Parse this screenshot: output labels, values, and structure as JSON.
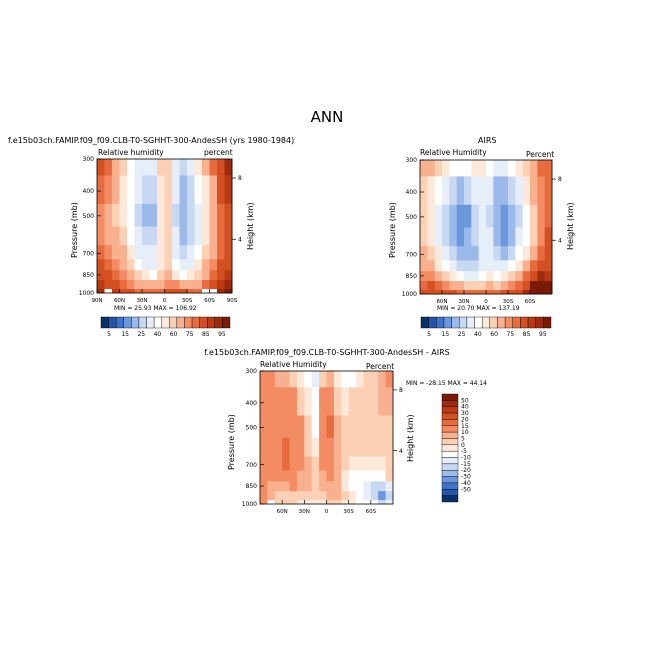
{
  "figure": {
    "title": "ANN",
    "diff_title": "f.e15b03ch.FAMIP.f09_f09.CLB-T0-SGHHT-300-AndesSH - AIRS"
  },
  "chart_data": [
    {
      "type": "heatmap",
      "panel": "model",
      "case_title": "f.e15b03ch.FAMIP.f09_f09.CLB-T0-SGHHT-300-AndesSH (yrs 1980-1984)",
      "field_label": "Relative humidity",
      "units": "percent",
      "ylabel": "Pressure (mb)",
      "ylabel_right": "Height (km)",
      "xlim": [
        90,
        -90
      ],
      "ylim": [
        1000,
        300
      ],
      "y_log": true,
      "xticks": [
        "90N",
        "60N",
        "30N",
        "0",
        "30S",
        "60S",
        "90S"
      ],
      "yticks": [
        "300",
        "400",
        "500",
        "700",
        "850",
        "1000"
      ],
      "right_ticks": [
        "8",
        "4"
      ],
      "stats": "MIN = 25.93  MAX = 106.92",
      "levels": [
        "5",
        "15",
        "25",
        "40",
        "60",
        "75",
        "85",
        "95"
      ],
      "colorbar_colors": [
        "#08306b",
        "#2454a6",
        "#3f73c9",
        "#6b97dc",
        "#9bb9ea",
        "#c7d8f3",
        "#e6eef9",
        "#ffffff",
        "#fde9d9",
        "#fbd0b5",
        "#f8b08e",
        "#f48c63",
        "#e86b3e",
        "#d44f22",
        "#bb3a14",
        "#9c2a0c",
        "#7a1a06"
      ],
      "x_centers": [
        85,
        75,
        65,
        55,
        45,
        35,
        25,
        15,
        5,
        -5,
        -15,
        -25,
        -35,
        -45,
        -55,
        -65,
        -75,
        -85
      ],
      "p_centers": [
        1000,
        925,
        850,
        775,
        700,
        600,
        500,
        400,
        300
      ],
      "values": [
        [
          100,
          95,
          95,
          90,
          85,
          80,
          80,
          80,
          82,
          85,
          85,
          85,
          80,
          80,
          85,
          90,
          100,
          105
        ],
        [
          95,
          90,
          85,
          80,
          75,
          70,
          65,
          65,
          70,
          75,
          72,
          68,
          65,
          70,
          78,
          85,
          95,
          100
        ],
        [
          90,
          85,
          80,
          75,
          70,
          60,
          55,
          50,
          60,
          65,
          58,
          50,
          55,
          62,
          70,
          80,
          90,
          95
        ],
        [
          85,
          80,
          75,
          70,
          60,
          50,
          45,
          42,
          55,
          60,
          50,
          42,
          45,
          55,
          65,
          75,
          85,
          90
        ],
        [
          80,
          75,
          70,
          65,
          55,
          45,
          40,
          40,
          55,
          60,
          45,
          38,
          40,
          50,
          60,
          70,
          80,
          88
        ],
        [
          75,
          70,
          65,
          60,
          50,
          40,
          35,
          35,
          55,
          60,
          40,
          32,
          35,
          45,
          55,
          65,
          78,
          85
        ],
        [
          75,
          70,
          62,
          55,
          48,
          38,
          32,
          32,
          55,
          60,
          38,
          28,
          35,
          45,
          55,
          65,
          80,
          88
        ],
        [
          80,
          75,
          65,
          55,
          48,
          40,
          35,
          35,
          58,
          60,
          40,
          32,
          38,
          48,
          58,
          70,
          85,
          92
        ],
        [
          90,
          80,
          70,
          60,
          50,
          45,
          40,
          42,
          60,
          62,
          45,
          38,
          45,
          55,
          65,
          78,
          90,
          100
        ]
      ],
      "masked_cells": [
        {
          "xi": 1,
          "pi": 0
        },
        {
          "xi": 14,
          "pi": 0
        },
        {
          "xi": 15,
          "pi": 0
        }
      ]
    },
    {
      "type": "heatmap",
      "panel": "obs",
      "case_title": "AIRS",
      "field_label": "Relative Humidity",
      "units": "Percent",
      "ylabel": "Pressure (mb)",
      "ylabel_right": "Height (km)",
      "xlim": [
        90,
        -90
      ],
      "ylim": [
        1000,
        300
      ],
      "y_log": true,
      "xticks": [
        "60N",
        "30N",
        "0",
        "30S",
        "60S"
      ],
      "yticks": [
        "300",
        "400",
        "500",
        "700",
        "850",
        "1000"
      ],
      "right_ticks": [
        "8",
        "4"
      ],
      "stats": "MIN = 20.70  MAX = 137.19",
      "levels": [
        "5",
        "15",
        "25",
        "40",
        "60",
        "75",
        "85",
        "95"
      ],
      "colorbar_colors": [
        "#08306b",
        "#2454a6",
        "#3f73c9",
        "#6b97dc",
        "#9bb9ea",
        "#c7d8f3",
        "#e6eef9",
        "#ffffff",
        "#fde9d9",
        "#fbd0b5",
        "#f8b08e",
        "#f48c63",
        "#e86b3e",
        "#d44f22",
        "#bb3a14",
        "#9c2a0c",
        "#7a1a06"
      ],
      "x_centers": [
        85,
        75,
        65,
        55,
        45,
        35,
        25,
        15,
        5,
        -5,
        -15,
        -25,
        -35,
        -45,
        -55,
        -65,
        -75,
        -85
      ],
      "p_centers": [
        1000,
        925,
        850,
        775,
        700,
        600,
        500,
        400,
        300
      ],
      "values": [
        [
          85,
          90,
          90,
          88,
          85,
          82,
          80,
          80,
          82,
          82,
          82,
          85,
          88,
          90,
          100,
          120,
          137,
          120
        ],
        [
          80,
          85,
          80,
          75,
          70,
          65,
          60,
          60,
          62,
          65,
          62,
          65,
          72,
          80,
          90,
          105,
          115,
          105
        ],
        [
          75,
          75,
          70,
          62,
          55,
          48,
          45,
          45,
          50,
          55,
          50,
          52,
          60,
          70,
          80,
          90,
          100,
          95
        ],
        [
          70,
          65,
          58,
          50,
          42,
          38,
          35,
          35,
          42,
          45,
          40,
          40,
          48,
          58,
          68,
          78,
          88,
          90
        ],
        [
          65,
          60,
          52,
          42,
          35,
          30,
          30,
          32,
          40,
          42,
          35,
          32,
          38,
          48,
          58,
          70,
          82,
          88
        ],
        [
          62,
          55,
          45,
          35,
          30,
          25,
          28,
          35,
          40,
          40,
          30,
          25,
          30,
          40,
          50,
          62,
          75,
          85
        ],
        [
          60,
          55,
          45,
          35,
          28,
          22,
          25,
          35,
          40,
          38,
          28,
          21,
          28,
          38,
          50,
          62,
          72,
          80
        ],
        [
          62,
          58,
          50,
          42,
          35,
          32,
          35,
          40,
          42,
          40,
          32,
          30,
          35,
          45,
          55,
          65,
          75,
          80
        ],
        [
          70,
          68,
          60,
          55,
          50,
          48,
          50,
          52,
          52,
          50,
          45,
          42,
          48,
          55,
          62,
          70,
          78,
          82
        ]
      ],
      "masked_cells": []
    },
    {
      "type": "heatmap",
      "panel": "diff",
      "case_title": "",
      "field_label": "Relative Humidity",
      "units": "Percent",
      "ylabel": "Pressure (mb)",
      "ylabel_right": "Height (km)",
      "xlim": [
        90,
        -90
      ],
      "ylim": [
        1000,
        300
      ],
      "y_log": true,
      "xticks": [
        "60N",
        "30N",
        "0",
        "30S",
        "60S"
      ],
      "yticks": [
        "300",
        "400",
        "500",
        "700",
        "850",
        "1000"
      ],
      "right_ticks": [
        "8",
        "4"
      ],
      "stats": "MIN = -28.15   MAX = 44.14",
      "levels": [
        "50",
        "40",
        "30",
        "20",
        "15",
        "10",
        "5",
        "0",
        "-5",
        "-10",
        "-15",
        "-20",
        "-30",
        "-40",
        "-50"
      ],
      "colorbar_colors": [
        "#7a1a06",
        "#9c2a0c",
        "#bb3a14",
        "#d44f22",
        "#e86b3e",
        "#f48c63",
        "#f8b08e",
        "#fbd0b5",
        "#fde9d9",
        "#ffffff",
        "#e6eef9",
        "#c7d8f3",
        "#9bb9ea",
        "#6b97dc",
        "#3f73c9",
        "#2454a6",
        "#08306b"
      ],
      "x_centers": [
        85,
        75,
        65,
        55,
        45,
        35,
        25,
        15,
        5,
        -5,
        -15,
        -25,
        -35,
        -45,
        -55,
        -65,
        -75,
        -85
      ],
      "p_centers": [
        1000,
        925,
        850,
        775,
        700,
        600,
        500,
        400,
        300
      ],
      "values": [
        [
          15,
          10,
          8,
          6,
          4,
          2,
          2,
          1,
          2,
          3,
          3,
          2,
          2,
          0,
          -5,
          -10,
          -20,
          -10
        ],
        [
          15,
          10,
          8,
          6,
          6,
          5,
          4,
          3,
          8,
          10,
          10,
          5,
          -2,
          -5,
          -10,
          -18,
          -28,
          -15
        ],
        [
          15,
          12,
          10,
          12,
          15,
          12,
          10,
          5,
          10,
          12,
          10,
          2,
          -5,
          -8,
          -10,
          -15,
          -20,
          -12
        ],
        [
          15,
          15,
          15,
          20,
          18,
          12,
          10,
          5,
          12,
          15,
          10,
          2,
          -3,
          -5,
          -5,
          -5,
          -8,
          5
        ],
        [
          15,
          15,
          18,
          22,
          20,
          15,
          10,
          8,
          15,
          18,
          10,
          6,
          2,
          2,
          2,
          0,
          -2,
          5
        ],
        [
          15,
          15,
          20,
          25,
          20,
          15,
          8,
          0,
          15,
          20,
          10,
          8,
          5,
          5,
          5,
          3,
          5,
          3
        ],
        [
          15,
          15,
          18,
          20,
          20,
          15,
          8,
          -3,
          15,
          22,
          10,
          7,
          7,
          7,
          5,
          3,
          8,
          8
        ],
        [
          18,
          18,
          15,
          15,
          15,
          8,
          0,
          -5,
          15,
          20,
          8,
          2,
          3,
          3,
          3,
          5,
          10,
          12
        ],
        [
          20,
          15,
          12,
          10,
          5,
          0,
          -8,
          -10,
          8,
          12,
          0,
          -4,
          -3,
          0,
          3,
          8,
          12,
          18
        ]
      ],
      "masked_cells": [
        {
          "xi": 1,
          "pi": 0
        },
        {
          "xi": 13,
          "pi": 0
        },
        {
          "xi": 14,
          "pi": 0
        },
        {
          "xi": 15,
          "pi": 0
        }
      ]
    }
  ]
}
